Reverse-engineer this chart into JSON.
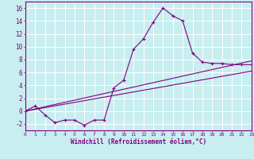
{
  "xlabel": "Windchill (Refroidissement éolien,°C)",
  "x_ticks": [
    0,
    1,
    2,
    3,
    4,
    5,
    6,
    7,
    8,
    9,
    10,
    11,
    12,
    13,
    14,
    15,
    16,
    17,
    18,
    19,
    20,
    21,
    22,
    23
  ],
  "ylim": [
    -3,
    17
  ],
  "xlim": [
    0,
    23
  ],
  "yticks": [
    -2,
    0,
    2,
    4,
    6,
    8,
    10,
    12,
    14,
    16
  ],
  "bg_color": "#c8eef0",
  "line_color": "#800080",
  "grid_color": "#ffffff",
  "series1_x": [
    0,
    1,
    2,
    3,
    4,
    5,
    6,
    7,
    8,
    9,
    10,
    11,
    12,
    13,
    14,
    15,
    16,
    17,
    18,
    19,
    20,
    21,
    22,
    23
  ],
  "series1_y": [
    0.0,
    0.8,
    -0.6,
    -1.8,
    -1.4,
    -1.4,
    -2.2,
    -1.4,
    -1.4,
    3.6,
    4.8,
    9.6,
    11.2,
    13.8,
    16.0,
    14.8,
    14.0,
    9.0,
    7.6,
    7.4,
    7.4,
    7.2,
    7.2,
    7.2
  ],
  "series2_x": [
    0,
    23
  ],
  "series2_y": [
    0.0,
    7.8
  ],
  "series3_x": [
    0,
    23
  ],
  "series3_y": [
    0.0,
    6.2
  ]
}
